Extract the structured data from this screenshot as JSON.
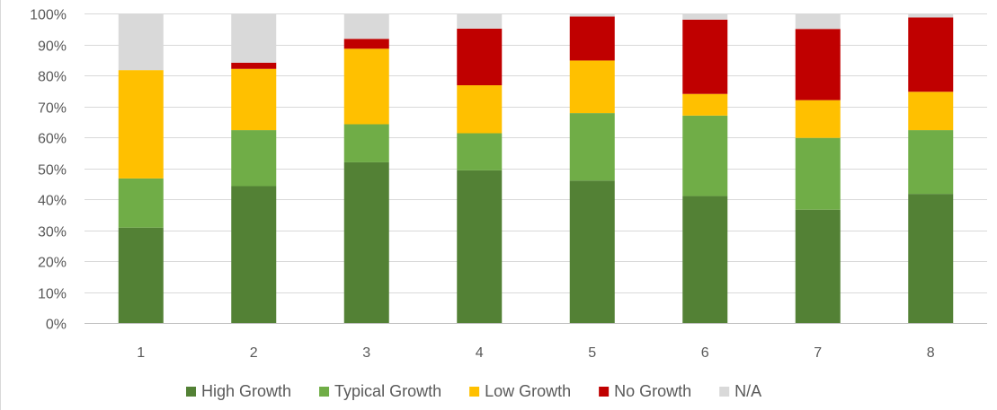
{
  "chart_data": {
    "type": "bar",
    "stacked": true,
    "percent_stacked": true,
    "categories": [
      "1",
      "2",
      "3",
      "4",
      "5",
      "6",
      "7",
      "8"
    ],
    "series": [
      {
        "name": "High Growth",
        "color": "#538135",
        "values": [
          30.8,
          44.2,
          51.9,
          49.3,
          46.0,
          41.0,
          36.6,
          41.7
        ]
      },
      {
        "name": "Typical Growth",
        "color": "#70AD47",
        "values": [
          15.9,
          18.1,
          12.3,
          12.0,
          21.8,
          26.0,
          23.2,
          20.6
        ]
      },
      {
        "name": "Low Growth",
        "color": "#FFC000",
        "values": [
          35.0,
          19.8,
          24.4,
          15.5,
          17.0,
          7.0,
          12.2,
          12.4
        ]
      },
      {
        "name": "No Growth",
        "color": "#C00000",
        "values": [
          0.0,
          2.0,
          3.2,
          18.3,
          14.2,
          24.0,
          23.0,
          24.0
        ]
      },
      {
        "name": "N/A",
        "color": "#D9D9D9",
        "values": [
          18.3,
          15.9,
          8.2,
          4.9,
          1.0,
          2.0,
          5.0,
          1.3
        ]
      }
    ],
    "y_ticks": [
      "0%",
      "10%",
      "20%",
      "30%",
      "40%",
      "50%",
      "60%",
      "70%",
      "80%",
      "90%",
      "100%"
    ],
    "ylim": [
      0,
      100
    ],
    "grid": true,
    "legend_position": "bottom"
  }
}
